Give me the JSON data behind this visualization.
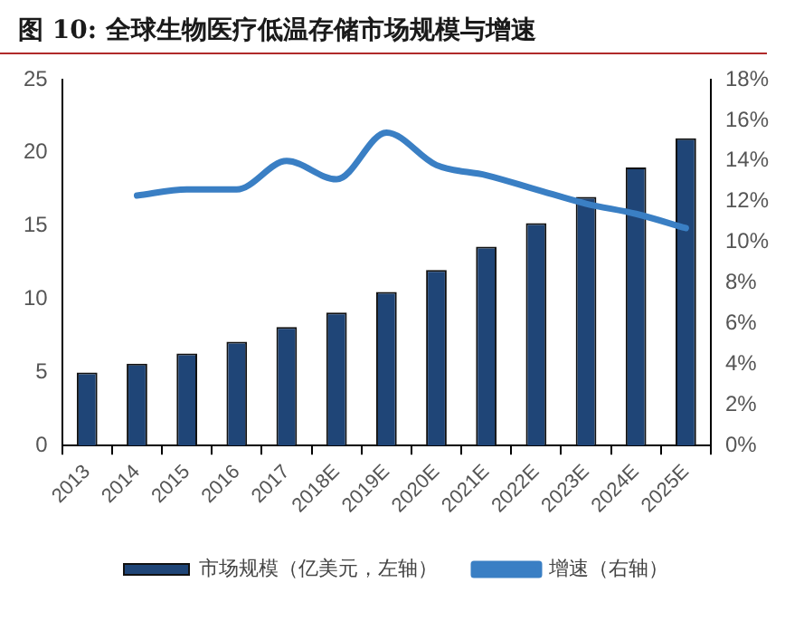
{
  "chart_data": {
    "type": "bar",
    "title": "图 10:  全球生物医疗低温存储市场规模与增速",
    "categories": [
      "2013",
      "2014",
      "2015",
      "2016",
      "2017",
      "2018E",
      "2019E",
      "2020E",
      "2021E",
      "2022E",
      "2023E",
      "2024E",
      "2025E"
    ],
    "series": [
      {
        "name": "市场规模（亿美元，左轴）",
        "color": "#1f4577",
        "values": [
          5.0,
          5.6,
          6.3,
          7.1,
          8.1,
          9.1,
          10.5,
          12.0,
          13.6,
          15.2,
          17.0,
          19.0,
          21.0
        ]
      },
      {
        "name": "增速（右轴）",
        "type": "line",
        "axis": "y2",
        "color": "#3a7fc4",
        "values": [
          null,
          12.3,
          12.6,
          12.6,
          14.0,
          13.1,
          15.4,
          13.8,
          13.3,
          12.6,
          11.9,
          11.4,
          10.7
        ]
      }
    ],
    "ylim": [
      0,
      25
    ],
    "yticks": [
      0,
      5,
      10,
      15,
      20,
      25
    ],
    "y2lim": [
      0,
      18
    ],
    "y2ticks": [
      {
        "value": 0,
        "label": "0%"
      },
      {
        "value": 2,
        "label": "2%"
      },
      {
        "value": 4,
        "label": "4%"
      },
      {
        "value": 6,
        "label": "6%"
      },
      {
        "value": 8,
        "label": "8%"
      },
      {
        "value": 10,
        "label": "10%"
      },
      {
        "value": 12,
        "label": "12%"
      },
      {
        "value": 14,
        "label": "14%"
      },
      {
        "value": 16,
        "label": "16%"
      },
      {
        "value": 18,
        "label": "18%"
      }
    ],
    "grid": false,
    "legend": "bottom",
    "marker": "none"
  }
}
